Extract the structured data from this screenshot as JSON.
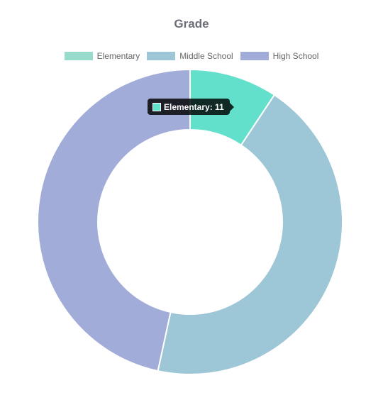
{
  "chart_data": {
    "type": "pie",
    "variant": "doughnut",
    "title": "Grade",
    "legend_position": "top",
    "categories": [
      "Elementary",
      "Middle School",
      "High School"
    ],
    "values": [
      11,
      52,
      55
    ],
    "colors": [
      "#62e0cb",
      "#9dc6d6",
      "#a2acd8"
    ],
    "legend_colors": [
      "#96dbcc",
      "#9dc6d6",
      "#a2acd8"
    ]
  },
  "tooltip": {
    "text": "Elementary: 11",
    "color": "#62e0cb"
  }
}
